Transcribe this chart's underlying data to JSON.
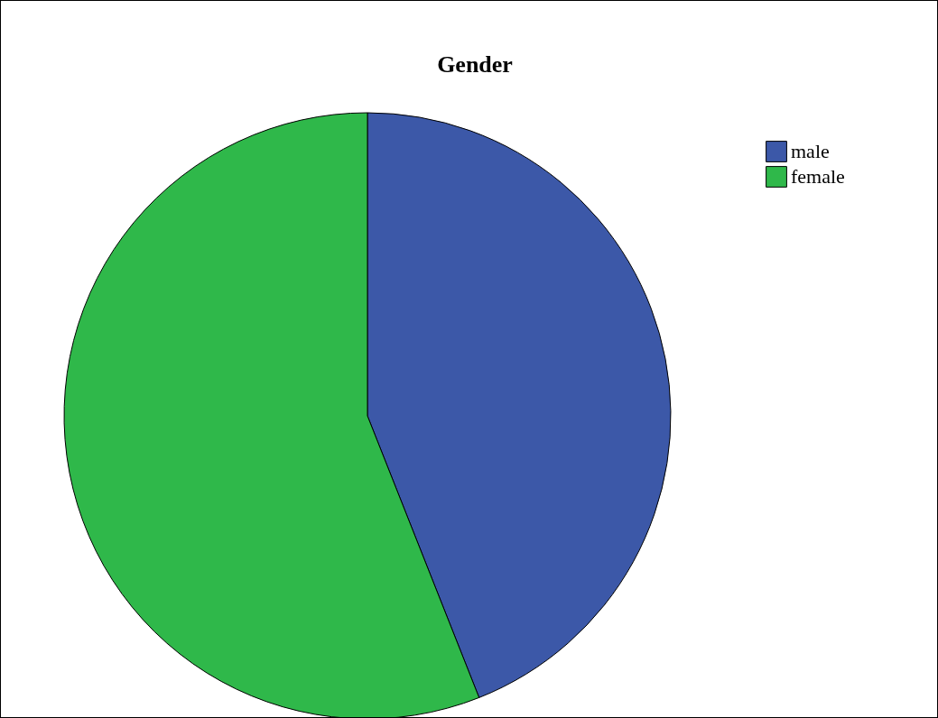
{
  "chart_data": {
    "type": "pie",
    "title": "Gender",
    "categories": [
      "male",
      "female"
    ],
    "values": [
      44,
      56
    ],
    "colors": [
      "#3c58a8",
      "#2fb84a"
    ],
    "legend": "top right"
  }
}
